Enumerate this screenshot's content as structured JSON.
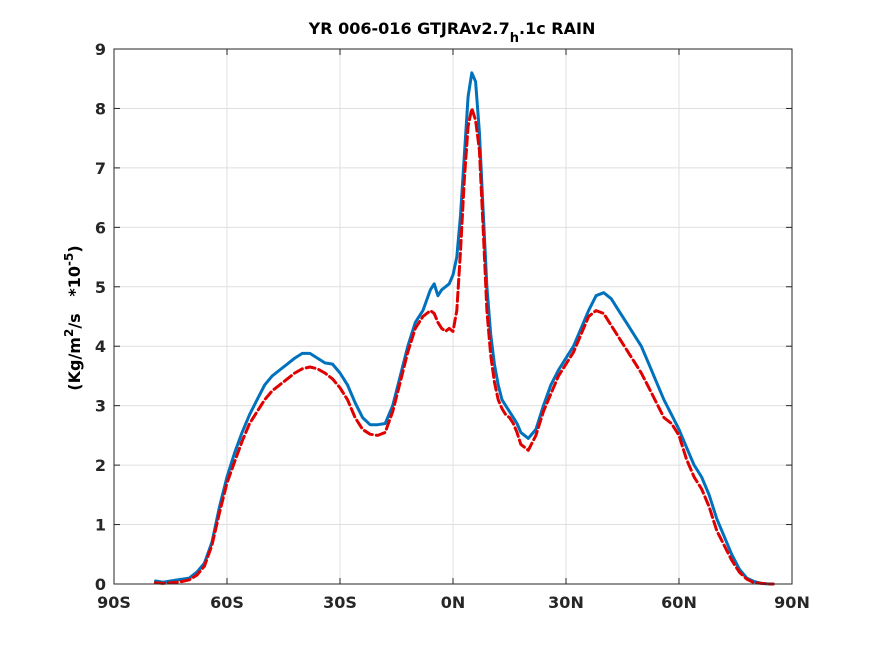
{
  "chart_data": {
    "type": "line",
    "title": {
      "main": "YR 006-016 GTJRAv2.7",
      "sub": "h",
      "tail": ".1c RAIN"
    },
    "ylabel": {
      "part1": "(Kg/m",
      "sup1": "2",
      "part2": "/s   *10",
      "sup2": "-5",
      "part3": ")"
    },
    "xlim": [
      -90,
      90
    ],
    "ylim": [
      0,
      9
    ],
    "x_ticks": [
      {
        "value": -90,
        "label": "90S"
      },
      {
        "value": -60,
        "label": "60S"
      },
      {
        "value": -30,
        "label": "30S"
      },
      {
        "value": 0,
        "label": "0N"
      },
      {
        "value": 30,
        "label": "30N"
      },
      {
        "value": 60,
        "label": "60N"
      },
      {
        "value": 90,
        "label": "90N"
      }
    ],
    "y_ticks": [
      0,
      1,
      2,
      3,
      4,
      5,
      6,
      7,
      8,
      9
    ],
    "grid": true,
    "series": [
      {
        "color": "#0072bd",
        "style": "solid",
        "x": [
          -79,
          -77,
          -75,
          -72,
          -70,
          -68,
          -66,
          -64,
          -62,
          -60,
          -58,
          -56,
          -54,
          -52,
          -50,
          -48,
          -46,
          -44,
          -42,
          -40,
          -38,
          -36,
          -34,
          -32,
          -30,
          -28,
          -26,
          -24,
          -22,
          -20,
          -18,
          -16,
          -14,
          -12,
          -10,
          -8,
          -6,
          -5,
          -4,
          -3,
          -2,
          -1,
          0,
          1,
          2,
          3,
          4,
          5,
          6,
          7,
          8,
          9,
          10,
          11,
          12,
          13,
          14,
          15,
          16,
          17,
          18,
          20,
          22,
          24,
          26,
          28,
          30,
          32,
          34,
          36,
          38,
          40,
          42,
          44,
          46,
          48,
          50,
          52,
          54,
          56,
          58,
          60,
          62,
          64,
          66,
          68,
          70,
          72,
          74,
          76,
          78,
          80,
          82,
          84,
          85
        ],
        "y": [
          0.05,
          0.03,
          0.05,
          0.08,
          0.1,
          0.2,
          0.35,
          0.7,
          1.3,
          1.8,
          2.2,
          2.55,
          2.85,
          3.1,
          3.35,
          3.5,
          3.6,
          3.7,
          3.8,
          3.88,
          3.88,
          3.8,
          3.72,
          3.7,
          3.55,
          3.35,
          3.05,
          2.8,
          2.68,
          2.68,
          2.7,
          3.0,
          3.5,
          4.0,
          4.4,
          4.6,
          4.95,
          5.05,
          4.85,
          4.95,
          5.0,
          5.05,
          5.2,
          5.5,
          6.2,
          7.2,
          8.2,
          8.6,
          8.45,
          7.6,
          6.3,
          5.0,
          4.2,
          3.7,
          3.35,
          3.1,
          3.0,
          2.9,
          2.8,
          2.7,
          2.55,
          2.45,
          2.6,
          3.0,
          3.35,
          3.6,
          3.8,
          4.0,
          4.3,
          4.6,
          4.85,
          4.9,
          4.8,
          4.6,
          4.4,
          4.2,
          4.0,
          3.7,
          3.4,
          3.1,
          2.85,
          2.6,
          2.3,
          2.0,
          1.8,
          1.5,
          1.1,
          0.8,
          0.5,
          0.25,
          0.1,
          0.04,
          0.01,
          0.0,
          0.0
        ]
      },
      {
        "color": "#e00000",
        "style": "dashed",
        "x": [
          -79,
          -77,
          -75,
          -72,
          -70,
          -68,
          -66,
          -64,
          -62,
          -60,
          -58,
          -56,
          -54,
          -52,
          -50,
          -48,
          -46,
          -44,
          -42,
          -40,
          -38,
          -36,
          -34,
          -32,
          -30,
          -28,
          -26,
          -24,
          -22,
          -20,
          -18,
          -16,
          -14,
          -12,
          -10,
          -8,
          -6,
          -5,
          -4,
          -3,
          -2,
          -1,
          0,
          1,
          2,
          3,
          4,
          5,
          6,
          7,
          8,
          9,
          10,
          11,
          12,
          13,
          14,
          15,
          16,
          17,
          18,
          20,
          22,
          24,
          26,
          28,
          30,
          32,
          34,
          36,
          38,
          40,
          42,
          44,
          46,
          48,
          50,
          52,
          54,
          56,
          58,
          60,
          62,
          64,
          66,
          68,
          70,
          72,
          74,
          76,
          78,
          80,
          82,
          84,
          85
        ],
        "y": [
          0.02,
          0.01,
          0.02,
          0.04,
          0.07,
          0.15,
          0.3,
          0.65,
          1.2,
          1.7,
          2.05,
          2.4,
          2.7,
          2.9,
          3.1,
          3.25,
          3.35,
          3.45,
          3.55,
          3.62,
          3.65,
          3.62,
          3.55,
          3.45,
          3.3,
          3.1,
          2.8,
          2.6,
          2.52,
          2.5,
          2.55,
          2.9,
          3.4,
          3.9,
          4.3,
          4.5,
          4.6,
          4.55,
          4.4,
          4.3,
          4.25,
          4.3,
          4.25,
          4.6,
          5.6,
          6.8,
          7.7,
          8.0,
          7.8,
          7.3,
          6.0,
          4.6,
          3.85,
          3.4,
          3.1,
          2.95,
          2.85,
          2.8,
          2.7,
          2.55,
          2.35,
          2.25,
          2.5,
          2.9,
          3.2,
          3.5,
          3.7,
          3.9,
          4.2,
          4.5,
          4.6,
          4.55,
          4.35,
          4.15,
          3.95,
          3.75,
          3.55,
          3.3,
          3.05,
          2.8,
          2.7,
          2.5,
          2.1,
          1.8,
          1.6,
          1.3,
          0.9,
          0.65,
          0.4,
          0.2,
          0.08,
          0.02,
          0.01,
          0.0,
          0.0
        ]
      }
    ]
  }
}
